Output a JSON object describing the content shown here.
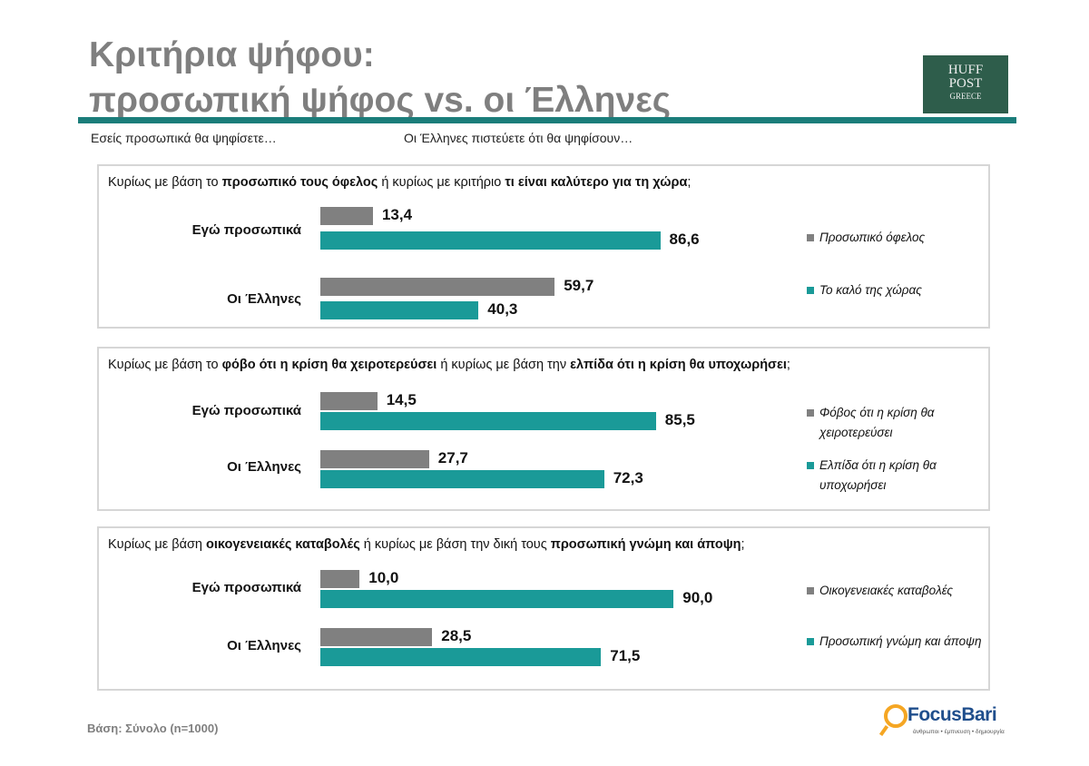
{
  "title_line1": "Κριτήρια ψήφου:",
  "title_line2": "προσωπική ψήφος vs. οι Έλληνες",
  "huffpost": {
    "line1": "HUFF",
    "line2": "POST",
    "line3": "GREECE"
  },
  "sub_left": "Εσείς προσωπικά θα ψηφίσετε…",
  "sub_right": "Οι Έλληνες πιστεύετε ότι θα ψηφίσουν…",
  "panels": [
    {
      "q_pre": "Κυρίως με βάση το ",
      "q_b1": "προσωπικό τους όφελος",
      "q_mid": " ή κυρίως με κριτήριο ",
      "q_b2": "τι είναι καλύτερο για τη χώρα",
      "q_post": ";",
      "legend_gray": "Προσωπικό όφελος",
      "legend_teal": "Το καλό της χώρας"
    },
    {
      "q_pre": "Κυρίως με βάση το ",
      "q_b1": "φόβο ότι η κρίση θα χειροτερεύσει",
      "q_mid": " ή κυρίως με βάση  την ",
      "q_b2": "ελπίδα ότι η κρίση θα υποχωρήσει",
      "q_post": ";",
      "legend_gray": "Φόβος ότι η κρίση θα χειροτερεύσει",
      "legend_teal": "Ελπίδα ότι η κρίση θα υποχωρήσει"
    },
    {
      "q_pre": "Κυρίως με βάση ",
      "q_b1": "οικογενειακές καταβολές",
      "q_mid": " ή κυρίως με βάση την δική τους ",
      "q_b2": "προσωπική γνώμη και άποψη",
      "q_post": ";",
      "legend_gray": "Οικογενειακές καταβολές",
      "legend_teal": "Προσωπική γνώμη και άποψη"
    }
  ],
  "chart_data": [
    {
      "type": "bar",
      "orientation": "horizontal",
      "categories": [
        "Εγώ προσωπικά",
        "Οι Έλληνες"
      ],
      "series": [
        {
          "name": "Προσωπικό όφελος",
          "values": [
            13.4,
            59.7
          ],
          "labels": [
            "13,4",
            "59,7"
          ]
        },
        {
          "name": "Το καλό της χώρας",
          "values": [
            86.6,
            40.3
          ],
          "labels": [
            "86,6",
            "40,3"
          ]
        }
      ],
      "xlim": [
        0,
        100
      ],
      "legend": "right",
      "colors": [
        "#808080",
        "#1a9a98"
      ]
    },
    {
      "type": "bar",
      "orientation": "horizontal",
      "categories": [
        "Εγώ προσωπικά",
        "Οι Έλληνες"
      ],
      "series": [
        {
          "name": "Φόβος ότι η κρίση θα χειροτερεύσει",
          "values": [
            14.5,
            27.7
          ],
          "labels": [
            "14,5",
            "27,7"
          ]
        },
        {
          "name": "Ελπίδα ότι η κρίση θα υποχωρήσει",
          "values": [
            85.5,
            72.3
          ],
          "labels": [
            "85,5",
            "72,3"
          ]
        }
      ],
      "xlim": [
        0,
        100
      ],
      "legend": "right",
      "colors": [
        "#808080",
        "#1a9a98"
      ]
    },
    {
      "type": "bar",
      "orientation": "horizontal",
      "categories": [
        "Εγώ προσωπικά",
        "Οι Έλληνες"
      ],
      "series": [
        {
          "name": "Οικογενειακές καταβολές",
          "values": [
            10.0,
            28.5
          ],
          "labels": [
            "10,0",
            "28,5"
          ]
        },
        {
          "name": "Προσωπική γνώμη και άποψη",
          "values": [
            90.0,
            71.5
          ],
          "labels": [
            "90,0",
            "71,5"
          ]
        }
      ],
      "xlim": [
        0,
        100
      ],
      "legend": "right",
      "colors": [
        "#808080",
        "#1a9a98"
      ]
    }
  ],
  "footer": "Βάση: Σύνολο (n=1000)",
  "focusbari": {
    "name": "FocusBari",
    "tagline": "άνθρωποι • έμπνευση • δημιουργία"
  }
}
